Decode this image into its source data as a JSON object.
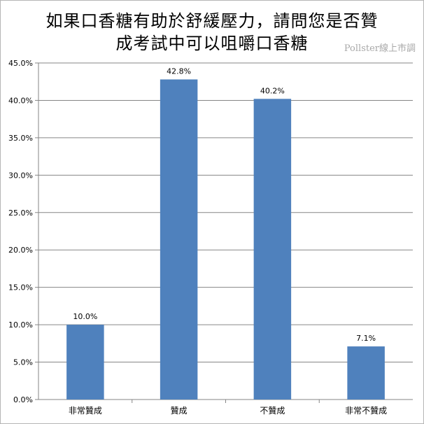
{
  "chart_data": {
    "type": "bar",
    "title_line1": "如果口香糖有助於舒緩壓力，請問您是否贊",
    "title_line2": "成考試中可以咀嚼口香糖",
    "watermark": "Pollster線上市調",
    "categories": [
      "非常贊成",
      "贊成",
      "不贊成",
      "非常不贊成"
    ],
    "values": [
      10.0,
      42.8,
      40.2,
      7.1
    ],
    "data_labels": [
      "10.0%",
      "42.8%",
      "40.2%",
      "7.1%"
    ],
    "yticks": [
      0,
      5,
      10,
      15,
      20,
      25,
      30,
      35,
      40,
      45
    ],
    "ytick_labels": [
      "0.0%",
      "5.0%",
      "10.0%",
      "15.0%",
      "20.0%",
      "25.0%",
      "30.0%",
      "35.0%",
      "40.0%",
      "45.0%"
    ],
    "ylim": [
      0,
      45
    ],
    "grid": true,
    "legend": "none",
    "bar_color": "#4f81bd",
    "grid_color": "#868686"
  }
}
